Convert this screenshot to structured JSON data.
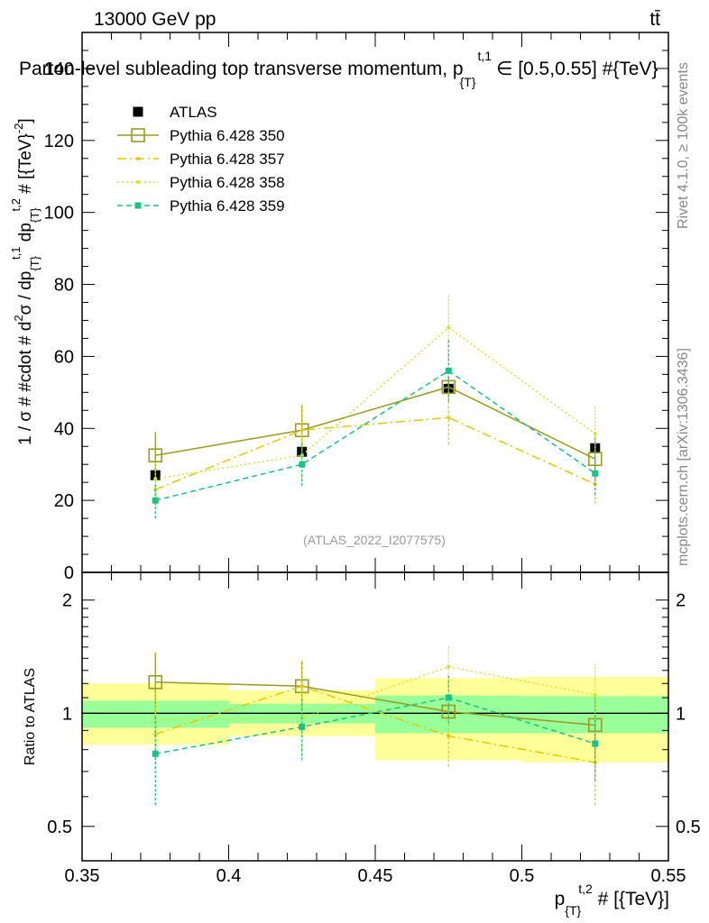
{
  "header": {
    "energy_label": "13000 GeV pp",
    "process_label": "tt̄"
  },
  "side_labels": {
    "rivet": "Rivet 4.1.0, ≥ 100k events",
    "mcplots": "mcplots.cern.ch [arXiv:1306.3436]"
  },
  "colors": {
    "atlas": "#000000",
    "py350": "#9a9a1e",
    "py357": "#e6c800",
    "py358": "#c8e632",
    "py359": "#19c387",
    "band_inner": "#99ff99",
    "band_outer": "#ffff99"
  },
  "chart_data": [
    {
      "type": "line",
      "title": "Parton-level subleading top transverse momentum, p_{T}^{t,1} ∈ [0.5,0.55] #{TeV}",
      "title_main": "Parton-level subleading top transverse momentum, p",
      "title_sub": "{T}",
      "title_sup": "t,1",
      "title_rest": "∈ [0.5,0.55] #{TeV}",
      "ylabel": "1 / σ # #cdot # d²σ / dp_{T}^{t,1} dp_{T}^{t,2} # [{TeV}^{-2}]",
      "ylabel_parts": {
        "a": "1 / σ # #cdot # d",
        "a_sup": "2",
        "b": "σ / dp",
        "b_sub": "{T}",
        "b_sup": "t,1",
        "c": " dp",
        "c_sub": "{T}",
        "c_sup": "t,2",
        "d": " # [{TeV}",
        "d_sup": "-2",
        "e": "]"
      },
      "watermark": "(ATLAS_2022_I2077575)",
      "xlim": [
        0.35,
        0.55
      ],
      "ylim": [
        0,
        150
      ],
      "y_ticks": [
        0,
        20,
        40,
        60,
        80,
        100,
        120,
        140
      ],
      "y_tick_labels": [
        "0",
        "20",
        "40",
        "60",
        "80",
        "100",
        "120",
        "140"
      ],
      "legend_position": "top-left",
      "series": [
        {
          "name": "ATLAS",
          "x": [
            0.375,
            0.425,
            0.475,
            0.525
          ],
          "y": [
            27,
            33.5,
            51,
            34.5
          ],
          "yerr": [
            1,
            1.5,
            2,
            1.5
          ],
          "style": "data",
          "color_key": "atlas"
        },
        {
          "name": "Pythia 6.428 350",
          "x": [
            0.375,
            0.425,
            0.475,
            0.525
          ],
          "y": [
            32.5,
            39.5,
            51.5,
            31.5
          ],
          "yerr": [
            6.5,
            7,
            2.5,
            6
          ],
          "style": "solid",
          "marker": "open-square",
          "color_key": "py350"
        },
        {
          "name": "Pythia 6.428 357",
          "x": [
            0.375,
            0.425,
            0.475,
            0.525
          ],
          "y": [
            23,
            39.5,
            43,
            24.5
          ],
          "yerr": [
            4.5,
            7,
            7.5,
            5.5
          ],
          "style": "dashdot",
          "marker": "small-dot",
          "color_key": "py357"
        },
        {
          "name": "Pythia 6.428 358",
          "x": [
            0.375,
            0.425,
            0.475,
            0.525
          ],
          "y": [
            26,
            32.5,
            68,
            38.5
          ],
          "yerr": [
            5,
            6.5,
            9.5,
            8
          ],
          "style": "dotted",
          "marker": "small-dot",
          "color_key": "py358"
        },
        {
          "name": "Pythia 6.428 359",
          "x": [
            0.375,
            0.425,
            0.475,
            0.525
          ],
          "y": [
            20,
            30,
            56,
            27.5
          ],
          "yerr": [
            5,
            6,
            8.5,
            6
          ],
          "style": "dashed",
          "marker": "filled-square",
          "color_key": "py359"
        }
      ]
    },
    {
      "type": "line",
      "title": "",
      "ylabel": "Ratio to ATLAS",
      "xlabel": "p_{T}^{t,2} # [{TeV}]",
      "xlabel_parts": {
        "a": "p",
        "a_sub": "{T}",
        "a_sup": "t,2",
        "b": " # [{TeV}]"
      },
      "xlim": [
        0.35,
        0.55
      ],
      "x_ticks": [
        0.35,
        0.4,
        0.45,
        0.5,
        0.55
      ],
      "x_tick_labels": [
        "0.35",
        "0.4",
        "0.45",
        "0.5",
        "0.55"
      ],
      "ylim": [
        0.405,
        2.37
      ],
      "y_scale": "log",
      "y_ticks": [
        0.5,
        1,
        2
      ],
      "y_tick_labels": [
        "0.5",
        "1",
        "2"
      ],
      "reference": 1,
      "bands": [
        {
          "x0": 0.35,
          "x1": 0.4,
          "inner": [
            0.915,
            1.08
          ],
          "outer": [
            0.825,
            1.2
          ]
        },
        {
          "x0": 0.4,
          "x1": 0.45,
          "inner": [
            0.94,
            1.06
          ],
          "outer": [
            0.87,
            1.15
          ]
        },
        {
          "x0": 0.45,
          "x1": 0.5,
          "inner": [
            0.885,
            1.115
          ],
          "outer": [
            0.75,
            1.24
          ]
        },
        {
          "x0": 0.5,
          "x1": 0.55,
          "inner": [
            0.885,
            1.11
          ],
          "outer": [
            0.74,
            1.25
          ]
        }
      ],
      "series": [
        {
          "name": "Pythia 6.428 350",
          "x": [
            0.375,
            0.425,
            0.475,
            0.525
          ],
          "y": [
            1.21,
            1.18,
            1.01,
            0.93
          ],
          "yerr": [
            0.24,
            0.2,
            0.05,
            0.17
          ],
          "style": "solid",
          "marker": "open-square",
          "color_key": "py350"
        },
        {
          "name": "Pythia 6.428 357",
          "x": [
            0.375,
            0.425,
            0.475,
            0.525
          ],
          "y": [
            0.88,
            1.18,
            0.87,
            0.74
          ],
          "yerr": [
            0.17,
            0.2,
            0.15,
            0.17
          ],
          "style": "dashdot",
          "marker": "small-dot",
          "color_key": "py357"
        },
        {
          "name": "Pythia 6.428 358",
          "x": [
            0.375,
            0.425,
            0.475,
            0.525
          ],
          "y": [
            0.96,
            0.97,
            1.33,
            1.12
          ],
          "yerr": [
            0.19,
            0.2,
            0.19,
            0.24
          ],
          "style": "dotted",
          "marker": "small-dot",
          "color_key": "py358"
        },
        {
          "name": "Pythia 6.428 359",
          "x": [
            0.375,
            0.425,
            0.475,
            0.525
          ],
          "y": [
            0.78,
            0.92,
            1.1,
            0.83
          ],
          "yerr": [
            0.21,
            0.17,
            0.16,
            0.17
          ],
          "style": "dashed",
          "marker": "filled-square",
          "color_key": "py359"
        }
      ]
    }
  ]
}
